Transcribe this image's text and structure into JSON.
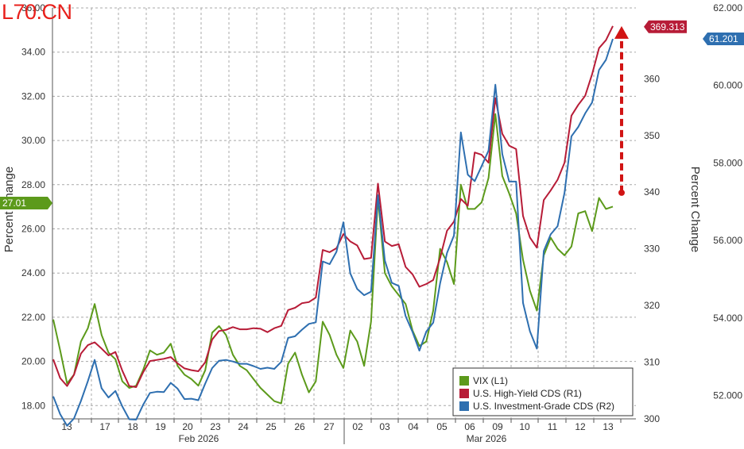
{
  "watermark": "L70.CN",
  "chart_data": {
    "type": "line",
    "title": "",
    "ylabel_left": "Percent Change",
    "ylabel_right": "Percent Change",
    "xlabel": "",
    "ylim_left": [
      17.4,
      36.0
    ],
    "ylim_right": [
      300,
      372.5
    ],
    "ylim_right2": [
      51.4,
      62.0
    ],
    "left_ticks": [
      "18.00",
      "20.00",
      "22.00",
      "24.00",
      "26.00",
      "28.00",
      "30.00",
      "32.00",
      "34.00",
      "36.00"
    ],
    "right_ticks": [
      "300",
      "310",
      "320",
      "330",
      "340",
      "350",
      "360"
    ],
    "right2_ticks": [
      "52.000",
      "54.000",
      "56.000",
      "58.000",
      "60.000",
      "62.000"
    ],
    "x_day_labels": [
      "13",
      "17",
      "18",
      "19",
      "20",
      "23",
      "24",
      "25",
      "26",
      "27",
      "02",
      "03",
      "04",
      "05",
      "06",
      "09",
      "10",
      "11",
      "12",
      "13"
    ],
    "month_labels": [
      "Feb 2026",
      "Mar 2026"
    ],
    "legend": {
      "position": "bottom-right",
      "entries": [
        "VIX (L1)",
        "U.S. High-Yield CDS (R1)",
        "U.S. Investment-Grade CDS (R2)"
      ]
    },
    "badges": {
      "vix_last": "27.01",
      "hy_last": "369.313",
      "ig_last": "61.201"
    },
    "arrow": {
      "from_value": 339.9,
      "to_value": 369.3,
      "axis": "right"
    },
    "colors": {
      "vix": "#5c9a1b",
      "hy": "#b71c37",
      "ig": "#2e6fb0",
      "arrow": "#d11414",
      "grid": "#a8a8a8"
    },
    "series": [
      {
        "name": "VIX (L1)",
        "axis": "left",
        "values": [
          21.9,
          20.5,
          19.0,
          19.4,
          20.9,
          21.5,
          22.6,
          21.2,
          20.4,
          20.1,
          19.1,
          18.8,
          18.9,
          19.6,
          20.5,
          20.3,
          20.4,
          20.8,
          19.8,
          19.4,
          19.2,
          18.9,
          19.6,
          21.3,
          21.6,
          21.2,
          20.3,
          19.8,
          19.6,
          19.2,
          18.8,
          18.5,
          18.2,
          18.1,
          19.9,
          20.4,
          19.4,
          18.6,
          19.1,
          21.8,
          21.2,
          20.3,
          19.7,
          21.4,
          20.9,
          19.8,
          21.8,
          27.4,
          24.0,
          23.4,
          23.0,
          22.6,
          21.4,
          20.7,
          20.9,
          22.3,
          25.1,
          24.5,
          23.5,
          28.0,
          26.9,
          26.9,
          27.2,
          28.3,
          31.2,
          28.4,
          27.6,
          26.7,
          24.6,
          23.2,
          22.3,
          24.8,
          25.6,
          25.1,
          24.8,
          25.2,
          26.7,
          26.8,
          25.9,
          27.4,
          26.9,
          27.01
        ]
      },
      {
        "name": "U.S. High-Yield CDS (R1)",
        "axis": "right",
        "values": [
          310.5,
          307.2,
          305.8,
          307.8,
          311.5,
          313.0,
          313.5,
          312.4,
          311.2,
          311.8,
          308.5,
          305.8,
          305.6,
          308.2,
          310.2,
          310.4,
          310.6,
          310.9,
          309.8,
          308.9,
          308.6,
          308.4,
          310.0,
          314.0,
          315.5,
          315.7,
          316.2,
          315.8,
          315.8,
          316.0,
          315.9,
          315.3,
          316.0,
          316.4,
          319.2,
          319.6,
          320.4,
          320.6,
          321.4,
          329.8,
          329.4,
          330.1,
          332.6,
          331.3,
          330.6,
          328.2,
          328.4,
          341.5,
          331.3,
          330.5,
          330.8,
          326.8,
          325.5,
          323.3,
          323.8,
          324.5,
          328.4,
          333.2,
          334.8,
          338.8,
          337.6,
          347.0,
          346.6,
          345.2,
          356.6,
          350.3,
          348.2,
          347.6,
          335.8,
          332.0,
          330.2,
          338.6,
          340.3,
          342.2,
          345.2,
          353.5,
          355.4,
          357.0,
          360.8,
          365.4,
          366.8,
          369.313
        ]
      },
      {
        "name": "U.S. Investment-Grade CDS (R2)",
        "axis": "right2",
        "values": [
          51.98,
          51.52,
          51.22,
          51.41,
          51.86,
          52.37,
          52.92,
          52.19,
          51.95,
          52.12,
          51.72,
          51.39,
          51.38,
          51.76,
          52.07,
          52.1,
          52.09,
          52.33,
          52.18,
          51.91,
          51.92,
          51.88,
          52.31,
          52.71,
          52.9,
          52.92,
          52.88,
          52.82,
          52.82,
          52.76,
          52.69,
          52.72,
          52.69,
          52.87,
          53.49,
          53.53,
          53.7,
          53.85,
          53.89,
          55.46,
          55.39,
          55.71,
          56.47,
          55.15,
          54.75,
          54.59,
          54.68,
          57.17,
          55.48,
          54.91,
          54.83,
          54.05,
          53.64,
          53.16,
          53.65,
          53.88,
          54.9,
          55.68,
          56.13,
          58.79,
          57.7,
          57.53,
          57.92,
          58.32,
          60.02,
          58.23,
          57.52,
          57.52,
          54.39,
          53.66,
          53.21,
          55.73,
          56.16,
          56.37,
          57.23,
          58.69,
          58.93,
          59.28,
          59.56,
          60.4,
          60.66,
          61.201
        ]
      }
    ]
  }
}
